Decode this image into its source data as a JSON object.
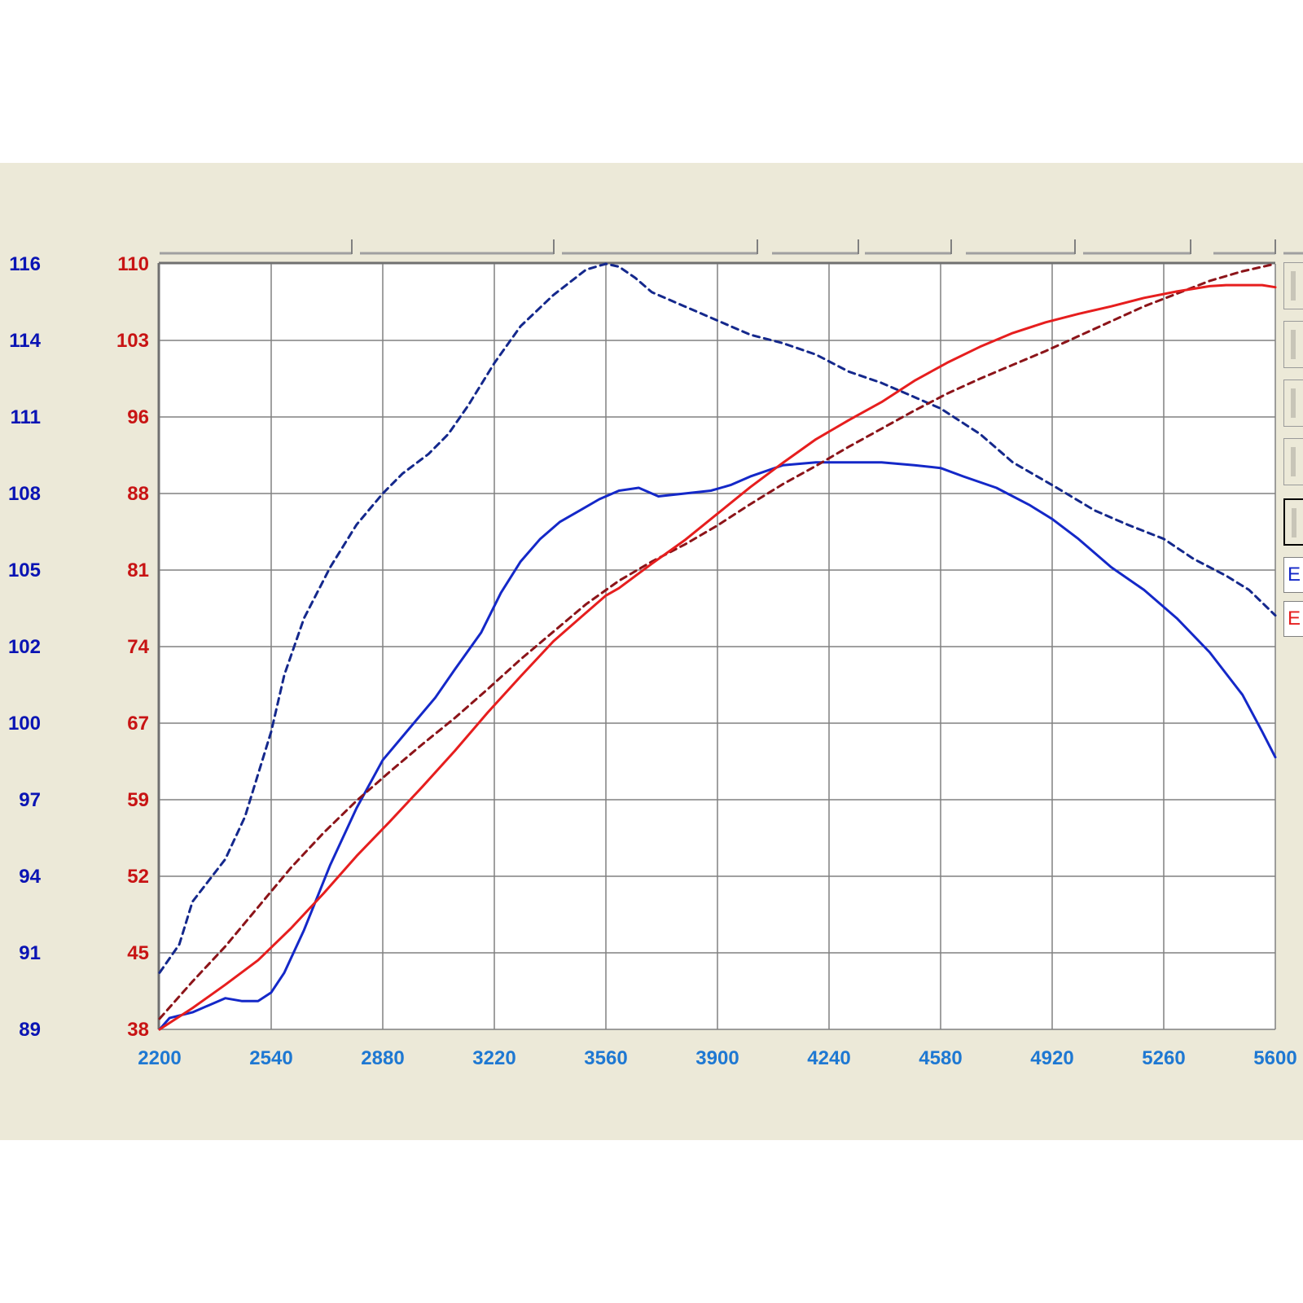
{
  "colors": {
    "left_axis": "#0a14b4",
    "right_axis": "#c81414",
    "x_axis": "#1e78d2",
    "grid": "#808080",
    "blue_series": "#1428c8",
    "blue_dashed": "#14288c",
    "red_series": "#e61e1e",
    "red_dashed": "#8c1419"
  },
  "legend_boxes": [
    {
      "label": "E",
      "color": "#1428c8"
    },
    {
      "label": "E",
      "color": "#e61e1e"
    }
  ],
  "chart_data": {
    "type": "line",
    "title": "",
    "grid": true,
    "x_ticks": [
      "2200",
      "2540",
      "2880",
      "3220",
      "3560",
      "3900",
      "4240",
      "4580",
      "4920",
      "5260",
      "5600"
    ],
    "y_left_ticks": [
      "116",
      "114",
      "111",
      "108",
      "105",
      "102",
      "100",
      "97",
      "94",
      "91",
      "89"
    ],
    "y_right_ticks": [
      "110",
      "103",
      "96",
      "88",
      "81",
      "74",
      "67",
      "59",
      "52",
      "45",
      "38"
    ],
    "xlim": [
      2200,
      5600
    ],
    "ylim_left": [
      89,
      116
    ],
    "ylim_right": [
      38,
      110
    ],
    "series": [
      {
        "axis": "left",
        "style": "dashed",
        "color": "#14288c",
        "x": [
          2200,
          2260,
          2300,
          2400,
          2460,
          2540,
          2580,
          2640,
          2720,
          2800,
          2880,
          2940,
          3020,
          3080,
          3140,
          3220,
          3300,
          3400,
          3500,
          3560,
          3600,
          3650,
          3700,
          3800,
          3900,
          4000,
          4100,
          4200,
          4300,
          4400,
          4500,
          4580,
          4700,
          4800,
          4920,
          5050,
          5150,
          5260,
          5350,
          5450,
          5520,
          5600
        ],
        "y": [
          91.0,
          92.0,
          93.5,
          95.0,
          96.5,
          99.5,
          101.5,
          103.5,
          105.3,
          106.8,
          107.9,
          108.6,
          109.3,
          110.0,
          111.0,
          112.5,
          113.8,
          114.9,
          115.8,
          116.0,
          115.9,
          115.5,
          115.0,
          114.5,
          114.0,
          113.5,
          113.2,
          112.8,
          112.2,
          111.8,
          111.3,
          110.9,
          110.0,
          109.0,
          108.2,
          107.3,
          106.8,
          106.3,
          105.6,
          105.0,
          104.5,
          103.6
        ]
      },
      {
        "axis": "left",
        "style": "solid",
        "color": "#1428c8",
        "x": [
          2200,
          2230,
          2300,
          2400,
          2450,
          2500,
          2540,
          2580,
          2640,
          2720,
          2800,
          2880,
          2960,
          3040,
          3100,
          3180,
          3240,
          3300,
          3360,
          3420,
          3480,
          3540,
          3600,
          3660,
          3720,
          3800,
          3880,
          3940,
          4000,
          4100,
          4200,
          4240,
          4300,
          4400,
          4500,
          4580,
          4650,
          4750,
          4850,
          4920,
          5000,
          5100,
          5200,
          5300,
          5400,
          5500,
          5560,
          5600
        ],
        "y": [
          89.0,
          89.4,
          89.6,
          90.1,
          90.0,
          90.0,
          90.3,
          91.0,
          92.5,
          94.8,
          96.8,
          98.5,
          99.6,
          100.7,
          101.7,
          103.0,
          104.4,
          105.5,
          106.3,
          106.9,
          107.3,
          107.7,
          108.0,
          108.1,
          107.8,
          107.9,
          108.0,
          108.2,
          108.5,
          108.9,
          109.0,
          109.0,
          109.0,
          109.0,
          108.9,
          108.8,
          108.5,
          108.1,
          107.5,
          107.0,
          106.3,
          105.3,
          104.5,
          103.5,
          102.3,
          100.8,
          99.5,
          98.6
        ]
      },
      {
        "axis": "right",
        "style": "dashed",
        "color": "#8c1419",
        "x": [
          2200,
          2300,
          2400,
          2500,
          2600,
          2700,
          2800,
          2900,
          3000,
          3100,
          3200,
          3300,
          3400,
          3500,
          3600,
          3700,
          3800,
          3900,
          4000,
          4100,
          4200,
          4300,
          4400,
          4500,
          4600,
          4700,
          4800,
          4900,
          5000,
          5100,
          5200,
          5300,
          5400,
          5500,
          5600
        ],
        "y": [
          39.0,
          42.5,
          45.8,
          49.5,
          53.2,
          56.5,
          59.5,
          62.2,
          64.8,
          67.3,
          70.0,
          72.8,
          75.4,
          78.0,
          80.2,
          82.0,
          83.6,
          85.4,
          87.4,
          89.3,
          91.0,
          92.8,
          94.5,
          96.2,
          97.8,
          99.2,
          100.5,
          101.8,
          103.2,
          104.6,
          106.0,
          107.2,
          108.4,
          109.3,
          110.0
        ]
      },
      {
        "axis": "right",
        "style": "solid",
        "color": "#e61e1e",
        "x": [
          2200,
          2300,
          2400,
          2500,
          2600,
          2700,
          2800,
          2900,
          3000,
          3100,
          3200,
          3300,
          3400,
          3500,
          3560,
          3600,
          3700,
          3800,
          3900,
          4000,
          4100,
          4200,
          4300,
          4400,
          4500,
          4600,
          4700,
          4800,
          4900,
          5000,
          5100,
          5200,
          5300,
          5400,
          5450,
          5500,
          5560,
          5600
        ],
        "y": [
          38.0,
          40.0,
          42.2,
          44.5,
          47.5,
          50.8,
          54.3,
          57.5,
          60.8,
          64.2,
          67.8,
          71.2,
          74.5,
          77.2,
          78.8,
          79.5,
          81.8,
          84.0,
          86.5,
          89.0,
          91.3,
          93.5,
          95.3,
          97.0,
          99.0,
          100.7,
          102.2,
          103.5,
          104.5,
          105.3,
          106.0,
          106.8,
          107.4,
          107.9,
          108.0,
          108.0,
          108.0,
          107.8
        ]
      }
    ]
  }
}
